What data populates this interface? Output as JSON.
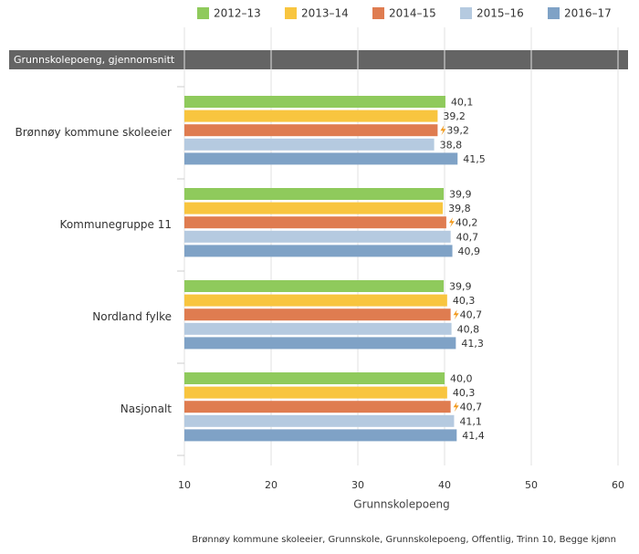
{
  "chart_data": {
    "type": "bar",
    "orientation": "horizontal",
    "subtitle": "Grunnskolepoeng, gjennomsnitt",
    "categories": [
      "Brønnøy kommune skoleeier",
      "Kommunegruppe 11",
      "Nordland fylke",
      "Nasjonalt"
    ],
    "series": [
      {
        "name": "2012–13",
        "color": "#8fca5c",
        "values": [
          40.1,
          39.9,
          39.9,
          40.0
        ],
        "value_labels": [
          "40,1",
          "39,9",
          "39,9",
          "40,0"
        ]
      },
      {
        "name": "2013–14",
        "color": "#f8c53f",
        "values": [
          39.2,
          39.8,
          40.3,
          40.3
        ],
        "value_labels": [
          "39,2",
          "39,8",
          "40,3",
          "40,3"
        ]
      },
      {
        "name": "2014–15",
        "color": "#df7c50",
        "values": [
          39.2,
          40.2,
          40.7,
          40.7
        ],
        "value_labels": [
          "39,2",
          "40,2",
          "40,7",
          "40,7"
        ]
      },
      {
        "name": "2015–16",
        "color": "#b5cae0",
        "values": [
          38.8,
          40.7,
          40.8,
          41.1
        ],
        "value_labels": [
          "38,8",
          "40,7",
          "40,8",
          "41,1"
        ]
      },
      {
        "name": "2016–17",
        "color": "#7fa2c6",
        "values": [
          41.5,
          40.9,
          41.3,
          41.4
        ],
        "value_labels": [
          "41,5",
          "40,9",
          "41,3",
          "41,4"
        ]
      }
    ],
    "xlim": [
      10,
      60
    ],
    "xticks": [
      10,
      20,
      30,
      40,
      50,
      60
    ],
    "grid": true,
    "xlabel": "Grunnskolepoeng",
    "footnote": "Brønnøy kommune skoleeier, Grunnskole, Grunnskolepoeng, Offentlig, Trinn 10, Begge kjønn"
  }
}
